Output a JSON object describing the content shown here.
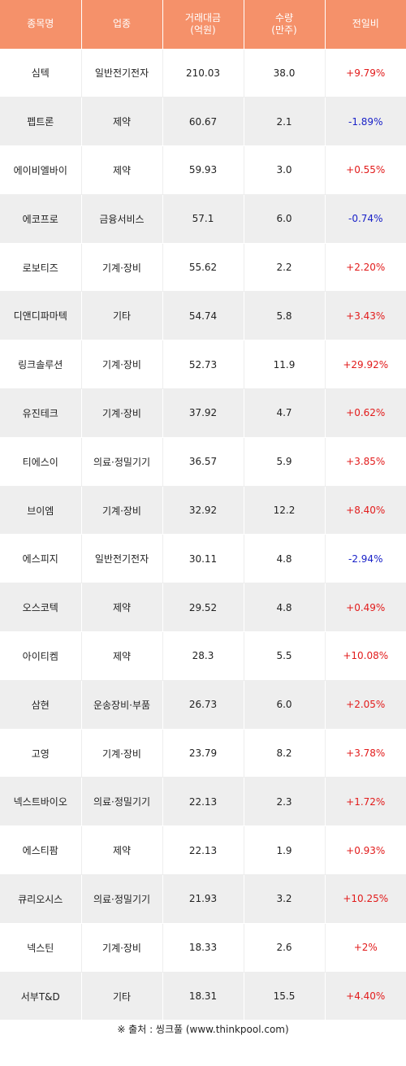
{
  "table": {
    "headers": [
      "종목명",
      "업종",
      "거래대금\n(억원)",
      "수량\n(만주)",
      "전일비"
    ],
    "rows": [
      {
        "name": "심텍",
        "sector": "일반전기전자",
        "amount": "210.03",
        "volume": "38.0",
        "change": "+9.79%",
        "direction": "up"
      },
      {
        "name": "펩트론",
        "sector": "제약",
        "amount": "60.67",
        "volume": "2.1",
        "change": "-1.89%",
        "direction": "down"
      },
      {
        "name": "에이비엘바이",
        "sector": "제약",
        "amount": "59.93",
        "volume": "3.0",
        "change": "+0.55%",
        "direction": "up"
      },
      {
        "name": "에코프로",
        "sector": "금융서비스",
        "amount": "57.1",
        "volume": "6.0",
        "change": "-0.74%",
        "direction": "down"
      },
      {
        "name": "로보티즈",
        "sector": "기계·장비",
        "amount": "55.62",
        "volume": "2.2",
        "change": "+2.20%",
        "direction": "up"
      },
      {
        "name": "디앤디파마텍",
        "sector": "기타",
        "amount": "54.74",
        "volume": "5.8",
        "change": "+3.43%",
        "direction": "up"
      },
      {
        "name": "링크솔루션",
        "sector": "기계·장비",
        "amount": "52.73",
        "volume": "11.9",
        "change": "+29.92%",
        "direction": "up"
      },
      {
        "name": "유진테크",
        "sector": "기계·장비",
        "amount": "37.92",
        "volume": "4.7",
        "change": "+0.62%",
        "direction": "up"
      },
      {
        "name": "티에스이",
        "sector": "의료·정밀기기",
        "amount": "36.57",
        "volume": "5.9",
        "change": "+3.85%",
        "direction": "up"
      },
      {
        "name": "브이엠",
        "sector": "기계·장비",
        "amount": "32.92",
        "volume": "12.2",
        "change": "+8.40%",
        "direction": "up"
      },
      {
        "name": "에스피지",
        "sector": "일반전기전자",
        "amount": "30.11",
        "volume": "4.8",
        "change": "-2.94%",
        "direction": "down"
      },
      {
        "name": "오스코텍",
        "sector": "제약",
        "amount": "29.52",
        "volume": "4.8",
        "change": "+0.49%",
        "direction": "up"
      },
      {
        "name": "아이티켐",
        "sector": "제약",
        "amount": "28.3",
        "volume": "5.5",
        "change": "+10.08%",
        "direction": "up"
      },
      {
        "name": "삼현",
        "sector": "운송장비·부품",
        "amount": "26.73",
        "volume": "6.0",
        "change": "+2.05%",
        "direction": "up"
      },
      {
        "name": "고영",
        "sector": "기계·장비",
        "amount": "23.79",
        "volume": "8.2",
        "change": "+3.78%",
        "direction": "up"
      },
      {
        "name": "넥스트바이오",
        "sector": "의료·정밀기기",
        "amount": "22.13",
        "volume": "2.3",
        "change": "+1.72%",
        "direction": "up"
      },
      {
        "name": "에스티팜",
        "sector": "제약",
        "amount": "22.13",
        "volume": "1.9",
        "change": "+0.93%",
        "direction": "up"
      },
      {
        "name": "큐리오시스",
        "sector": "의료·정밀기기",
        "amount": "21.93",
        "volume": "3.2",
        "change": "+10.25%",
        "direction": "up"
      },
      {
        "name": "넥스틴",
        "sector": "기계·장비",
        "amount": "18.33",
        "volume": "2.6",
        "change": "+2%",
        "direction": "up"
      },
      {
        "name": "서부T&D",
        "sector": "기타",
        "amount": "18.31",
        "volume": "15.5",
        "change": "+4.40%",
        "direction": "up"
      }
    ]
  },
  "footer": {
    "source": "※ 출처 : 씽크풀 (www.thinkpool.com)"
  },
  "colors": {
    "header_bg": "#f5916a",
    "up": "#e21b1b",
    "down": "#1a22c8",
    "stripe": "#eeeeee"
  }
}
